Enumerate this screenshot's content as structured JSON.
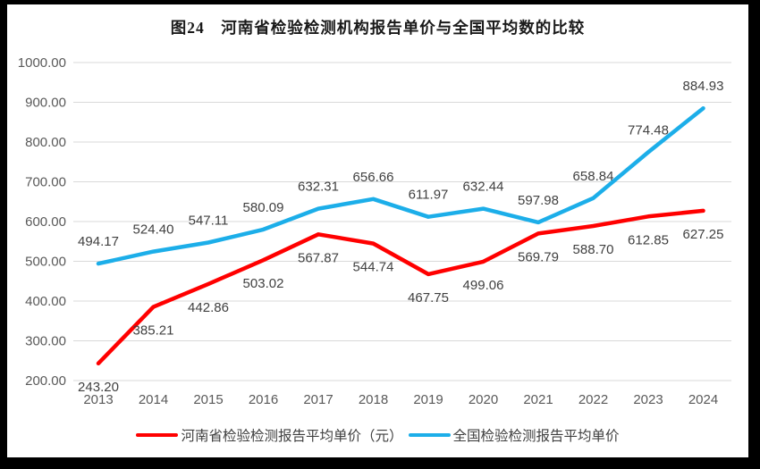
{
  "chart_data": {
    "type": "line",
    "title": "图24　河南省检验检测机构报告单价与全国平均数的比较",
    "categories": [
      "2013",
      "2014",
      "2015",
      "2016",
      "2017",
      "2018",
      "2019",
      "2020",
      "2021",
      "2022",
      "2023",
      "2024"
    ],
    "series": [
      {
        "name": "河南省检验检测报告平均单价（元）",
        "color": "#FF0000",
        "values": [
          243.2,
          385.21,
          442.86,
          503.02,
          567.87,
          544.74,
          467.75,
          499.06,
          569.79,
          588.7,
          612.85,
          627.25
        ],
        "labels": [
          "243.20",
          "385.21",
          "442.86",
          "503.02",
          "567.87",
          "544.74",
          "467.75",
          "499.06",
          "569.79",
          "588.70",
          "612.85",
          "627.25"
        ],
        "label_position": "below"
      },
      {
        "name": "全国检验检测报告平均单价",
        "color": "#1CAEE9",
        "values": [
          494.17,
          524.4,
          547.11,
          580.09,
          632.31,
          656.66,
          611.97,
          632.44,
          597.98,
          658.84,
          774.48,
          884.93
        ],
        "labels": [
          "494.17",
          "524.40",
          "547.11",
          "580.09",
          "632.31",
          "656.66",
          "611.97",
          "632.44",
          "597.98",
          "658.84",
          "774.48",
          "884.93"
        ],
        "label_position": "above"
      }
    ],
    "yticks": [
      "1000.00",
      "900.00",
      "800.00",
      "700.00",
      "600.00",
      "500.00",
      "400.00",
      "300.00",
      "200.00"
    ],
    "ylim": [
      200,
      1000
    ],
    "ytick_step": 100,
    "grid": true,
    "legend_position": "bottom",
    "colors": {
      "data_label": "#404040",
      "axis_label": "#595959",
      "gridline": "#D9D9D9",
      "frame": "#000000",
      "background": "#FFFFFF"
    }
  }
}
